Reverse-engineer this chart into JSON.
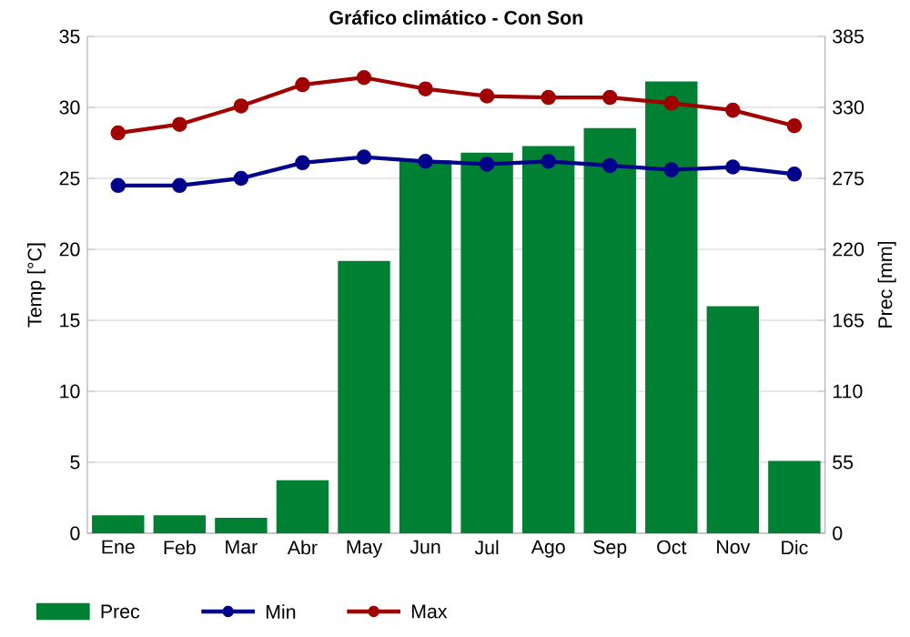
{
  "chart_data": {
    "type": "line",
    "title": "Gráfico climático - Con Son",
    "categories": [
      "Ene",
      "Feb",
      "Mar",
      "Abr",
      "May",
      "Jun",
      "Jul",
      "Ago",
      "Sep",
      "Oct",
      "Nov",
      "Dic"
    ],
    "ylabel": "Temp [°C]",
    "y2label": "Prec [mm]",
    "ylim": [
      0,
      35
    ],
    "yticks": [
      0,
      5,
      10,
      15,
      20,
      25,
      30,
      35
    ],
    "y2lim": [
      0,
      385
    ],
    "y2ticks": [
      0,
      55,
      110,
      165,
      220,
      275,
      330,
      385
    ],
    "grid": "y",
    "legend": "bottom",
    "marker": "circle",
    "series": [
      {
        "name": "Prec",
        "type": "bar",
        "axis": "y2",
        "color": "#008033",
        "values": [
          14,
          14,
          12,
          41,
          211,
          289,
          295,
          300,
          314,
          350,
          176,
          56
        ]
      },
      {
        "name": "Min",
        "color": "#00008b",
        "values": [
          24.5,
          24.5,
          25.0,
          26.1,
          26.5,
          26.2,
          26.0,
          26.2,
          25.9,
          25.6,
          25.8,
          25.3
        ]
      },
      {
        "name": "Max",
        "color": "#a00000",
        "values": [
          28.2,
          28.8,
          30.1,
          31.6,
          32.1,
          31.3,
          30.8,
          30.7,
          30.7,
          30.3,
          29.8,
          28.7
        ]
      }
    ]
  }
}
